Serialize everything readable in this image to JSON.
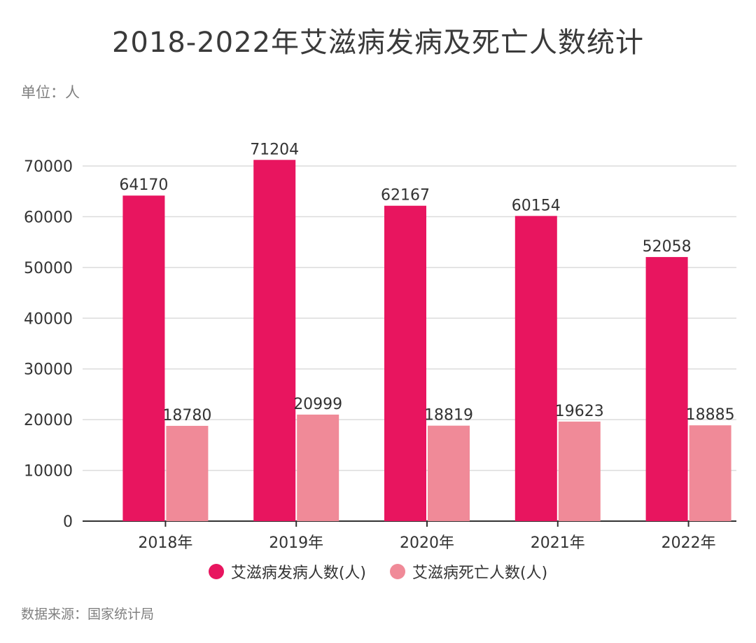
{
  "title": "2018-2022年艾滋病发病及死亡人数统计",
  "unit": "单位：人",
  "source": "数据来源：国家统计局",
  "chart_data": {
    "type": "bar",
    "categories": [
      "2018年",
      "2019年",
      "2020年",
      "2021年",
      "2022年"
    ],
    "series": [
      {
        "name": "艾滋病发病人数(人)",
        "color": "#e8155f",
        "values": [
          64170,
          71204,
          62167,
          60154,
          52058
        ]
      },
      {
        "name": "艾滋病死亡人数(人)",
        "color": "#f08a98",
        "values": [
          18780,
          20999,
          18819,
          19623,
          18885
        ]
      }
    ],
    "yticks": [
      "0",
      "10000",
      "20000",
      "30000",
      "40000",
      "50000",
      "60000",
      "70000"
    ],
    "ylim": [
      0,
      70000
    ],
    "grid": true,
    "legend_position": "bottom"
  }
}
